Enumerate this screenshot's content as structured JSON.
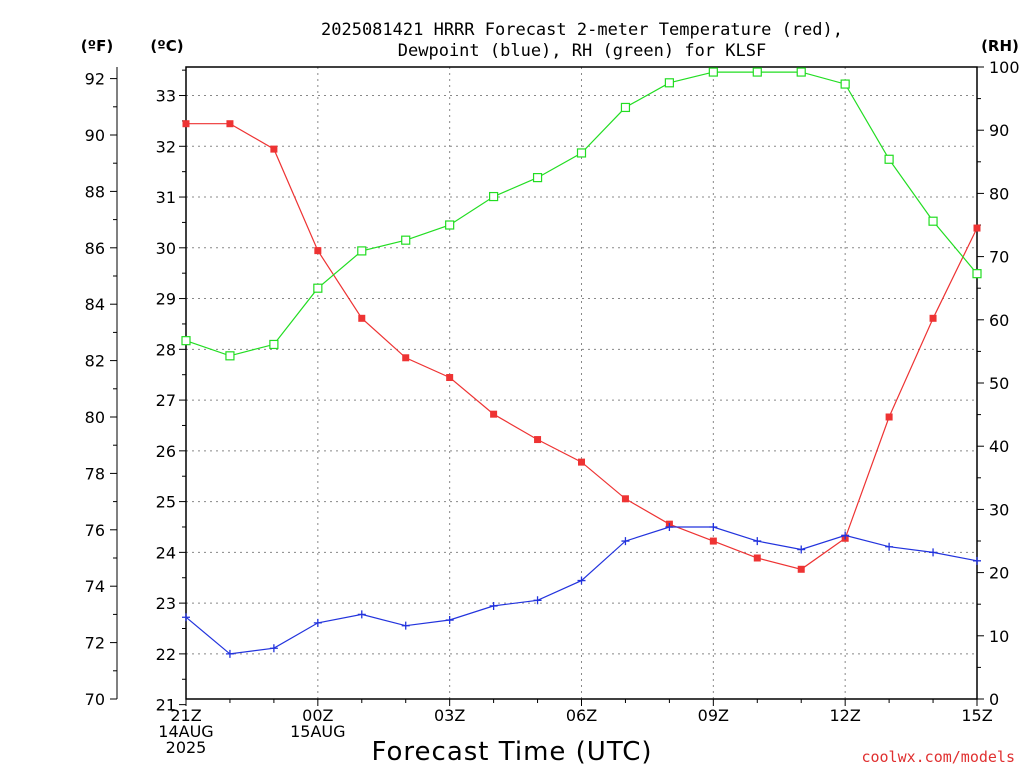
{
  "page": {
    "title_line1": "2025081421 HRRR Forecast 2-meter Temperature (red),",
    "title_line2": "Dewpoint (blue), RH (green) for KLSF",
    "xlabel": "Forecast Time (UTC)",
    "watermark": "coolwx.com/models",
    "unit_f": "(ºF)",
    "unit_c": "(ºC)",
    "unit_rh": "(RH)"
  },
  "x_ticks": [
    {
      "h": 0,
      "lines": [
        "21Z",
        "14AUG",
        "2025"
      ]
    },
    {
      "h": 3,
      "lines": [
        "00Z",
        "15AUG"
      ]
    },
    {
      "h": 6,
      "lines": [
        "03Z"
      ]
    },
    {
      "h": 9,
      "lines": [
        "06Z"
      ]
    },
    {
      "h": 12,
      "lines": [
        "09Z"
      ]
    },
    {
      "h": 15,
      "lines": [
        "12Z"
      ]
    },
    {
      "h": 18,
      "lines": [
        "15Z"
      ]
    }
  ],
  "y_ticks_f": [
    "70",
    "72",
    "74",
    "76",
    "78",
    "80",
    "82",
    "84",
    "86",
    "88",
    "90",
    "92"
  ],
  "y_ticks_c": [
    "21",
    "22",
    "23",
    "24",
    "25",
    "26",
    "27",
    "28",
    "29",
    "30",
    "31",
    "32",
    "33"
  ],
  "y_ticks_rh": [
    "0",
    "10",
    "20",
    "30",
    "40",
    "50",
    "60",
    "70",
    "80",
    "90",
    "100"
  ],
  "chart_data": {
    "type": "line",
    "title": "2025081421 HRRR Forecast 2-meter Temperature (red), Dewpoint (blue), RH (green) for KLSF",
    "xlabel": "Forecast Time (UTC)",
    "ylabel_left": "(ºF)",
    "ylabel_left_inner": "(ºC)",
    "ylabel_right": "(RH)",
    "x": [
      "21Z",
      "22Z",
      "23Z",
      "00Z",
      "01Z",
      "02Z",
      "03Z",
      "04Z",
      "05Z",
      "06Z",
      "07Z",
      "08Z",
      "09Z",
      "10Z",
      "11Z",
      "12Z",
      "13Z",
      "14Z",
      "15Z"
    ],
    "ylim_f": [
      70,
      92.4
    ],
    "ylim_rh": [
      0,
      100
    ],
    "grid": true,
    "series": [
      {
        "name": "Temperature",
        "axis": "F",
        "color": "#ee3333",
        "marker": "filled-square",
        "values": [
          90.4,
          90.4,
          89.5,
          85.9,
          83.5,
          82.1,
          81.4,
          80.1,
          79.2,
          78.4,
          77.1,
          76.2,
          75.6,
          75.0,
          74.6,
          75.7,
          80.0,
          83.5,
          86.7
        ]
      },
      {
        "name": "Dewpoint",
        "axis": "F",
        "color": "#2233dd",
        "marker": "plus",
        "values": [
          72.9,
          71.6,
          71.8,
          72.7,
          73.0,
          72.6,
          72.8,
          73.3,
          73.5,
          74.2,
          75.6,
          76.1,
          76.1,
          75.6,
          75.3,
          75.8,
          75.4,
          75.2,
          74.9
        ]
      },
      {
        "name": "RH",
        "axis": "RH",
        "color": "#22dd22",
        "marker": "open-square",
        "values": [
          56.7,
          54.3,
          56.1,
          65.0,
          70.9,
          72.6,
          75.0,
          79.5,
          82.5,
          86.4,
          93.6,
          97.5,
          99.2,
          99.2,
          99.2,
          97.3,
          85.4,
          75.6,
          67.3
        ]
      }
    ]
  }
}
